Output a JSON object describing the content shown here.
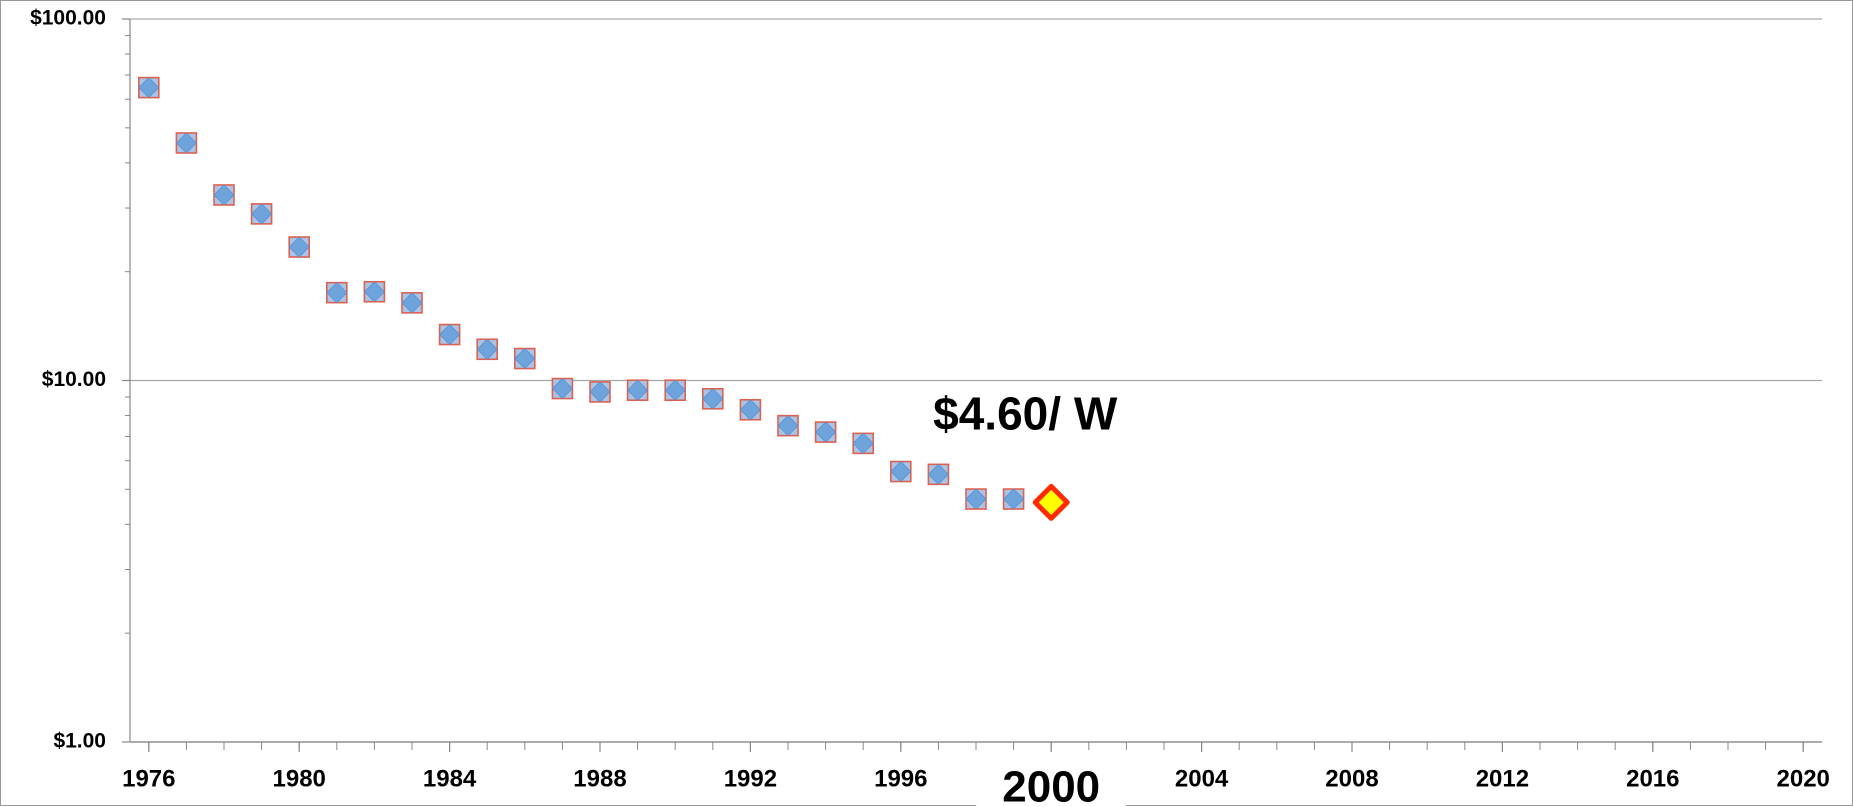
{
  "chart_data": {
    "type": "scatter",
    "log_y": true,
    "grid": true,
    "xlim": [
      1975.5,
      2020.5
    ],
    "ylim": [
      1,
      100
    ],
    "xticks": [
      1976,
      1980,
      1984,
      1988,
      1992,
      1996,
      2000,
      2004,
      2008,
      2012,
      2016,
      2020
    ],
    "highlight_xtick_index": 6,
    "xminor_ticks": [
      1976,
      1977,
      1978,
      1979,
      1980,
      1981,
      1982,
      1983,
      1984,
      1985,
      1986,
      1987,
      1988,
      1989,
      1990,
      1991,
      1992,
      1993,
      1994,
      1995,
      1996,
      1997,
      1998,
      1999,
      2000,
      2001,
      2002,
      2003,
      2004,
      2005,
      2006,
      2007,
      2008,
      2009,
      2010,
      2011,
      2012,
      2013,
      2014,
      2015,
      2016,
      2017,
      2018,
      2019,
      2020
    ],
    "yticks": [
      {
        "value": 1,
        "label": "$1.00"
      },
      {
        "value": 10,
        "label": "$10.00"
      },
      {
        "value": 100,
        "label": "$100.00"
      }
    ],
    "yminor_ticks": [
      2,
      3,
      4,
      5,
      6,
      7,
      8,
      9,
      20,
      30,
      40,
      50,
      60,
      70,
      80,
      90
    ],
    "series": [
      {
        "color": "#6fa3dc",
        "edge_color": "#e0604f",
        "marker": "square-diamond",
        "x": [
          1976,
          1977,
          1978,
          1979,
          1980,
          1981,
          1982,
          1983,
          1984,
          1985,
          1986,
          1987,
          1988,
          1989,
          1990,
          1991,
          1992,
          1993,
          1994,
          1995,
          1996,
          1997,
          1998,
          1999
        ],
        "values": [
          64.6,
          45.4,
          32.6,
          28.9,
          23.4,
          17.5,
          17.6,
          16.4,
          13.4,
          12.2,
          11.5,
          9.5,
          9.3,
          9.4,
          9.4,
          8.9,
          8.3,
          7.5,
          7.2,
          6.7,
          5.6,
          5.5,
          4.7,
          4.7
        ]
      },
      {
        "color": "#ffff00",
        "edge_color": "#ff2a00",
        "marker": "diamond",
        "x": [
          2000
        ],
        "values": [
          4.6
        ],
        "value_labels": [
          "$4.60/ W"
        ]
      }
    ]
  }
}
